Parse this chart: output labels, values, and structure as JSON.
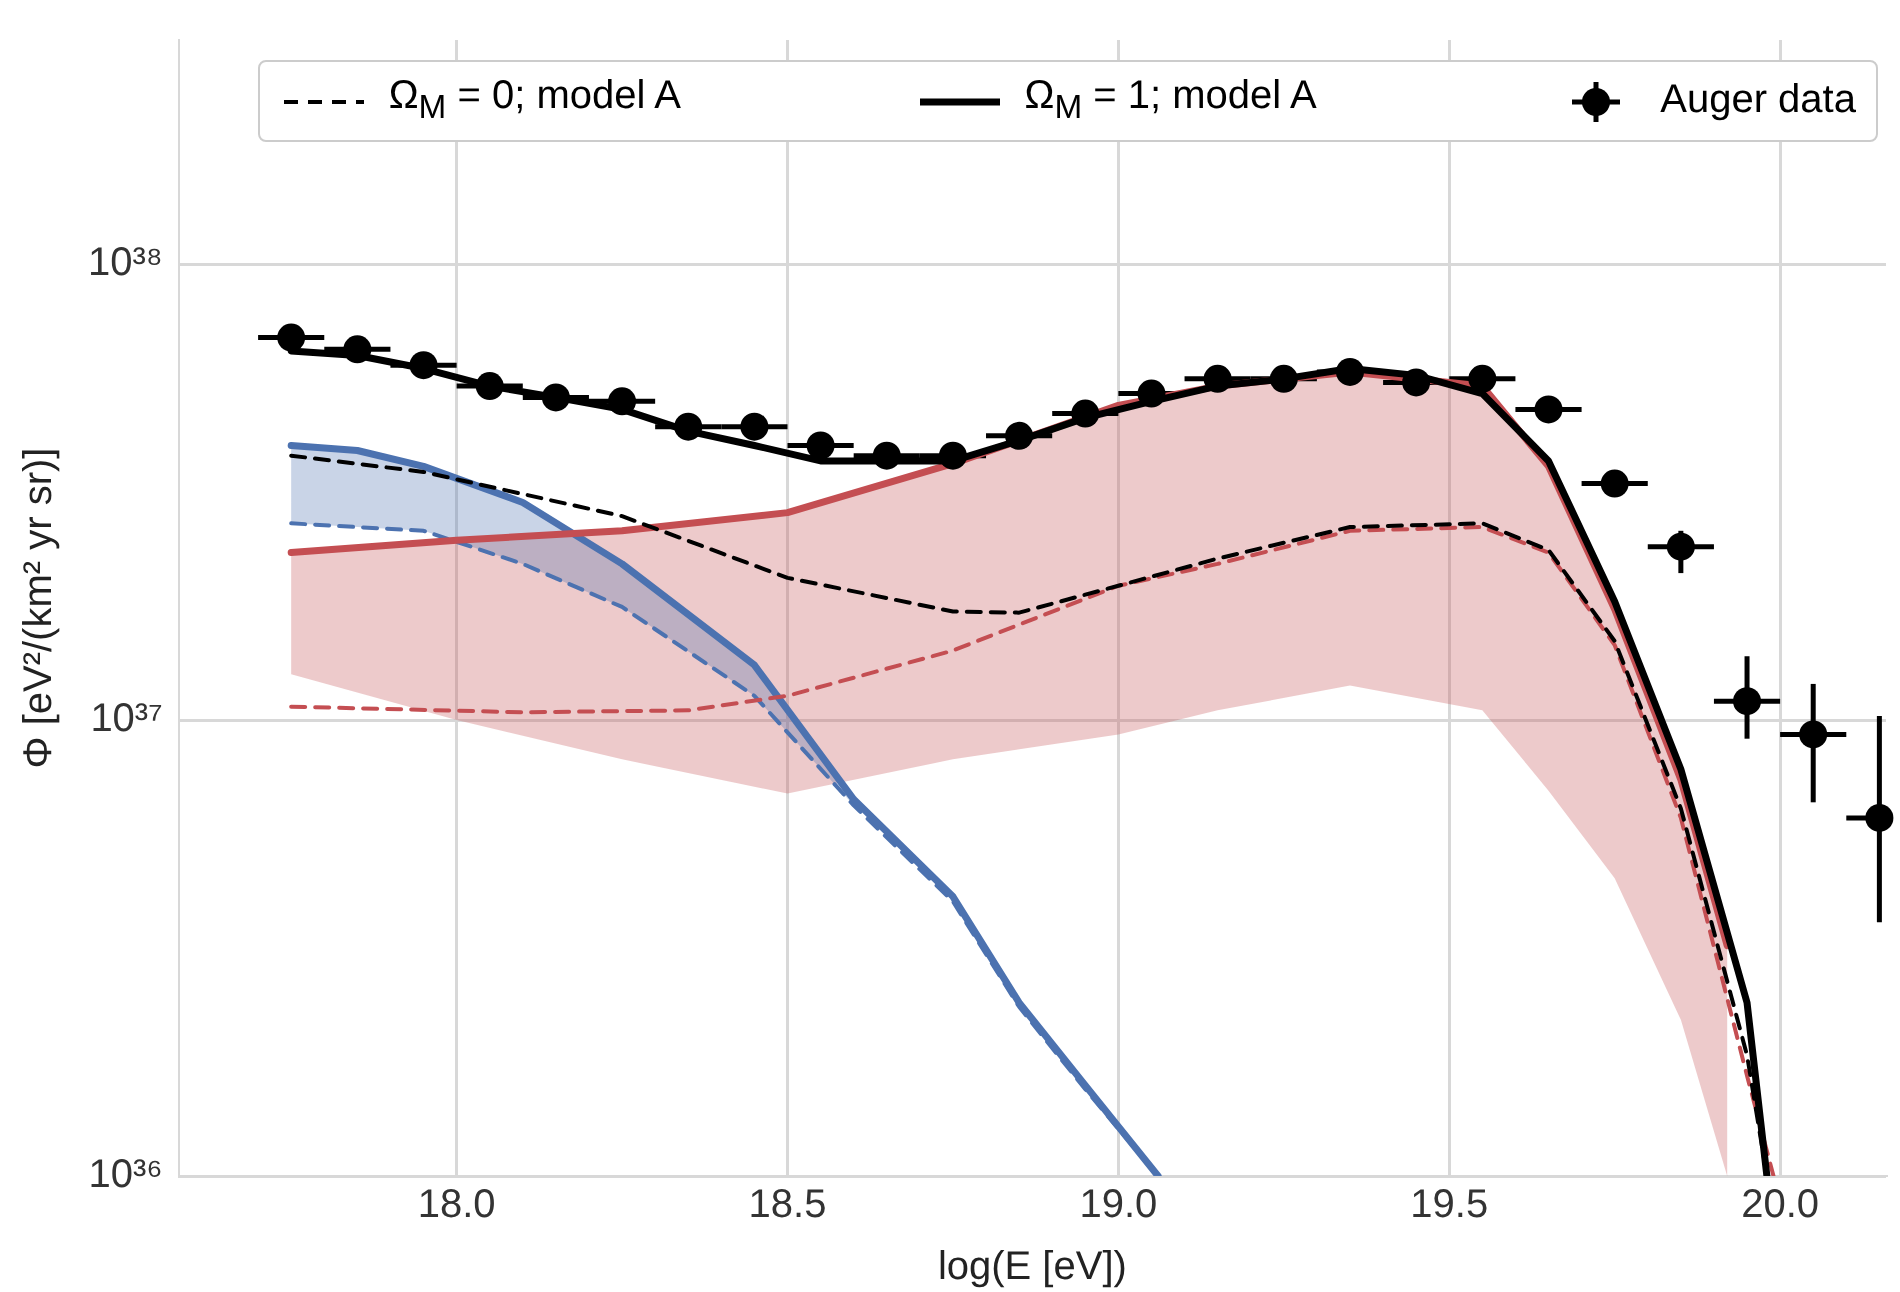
{
  "chart_data": {
    "type": "line",
    "xlabel": "log(E [eV])",
    "ylabel": "Φ [eV²/(km² yr sr)]",
    "log": "y",
    "grid": true,
    "legend": "top right",
    "xlim": [
      17.58,
      20.16
    ],
    "xticks": [
      {
        "value": 18,
        "label": "18.0"
      },
      {
        "value": 18.5,
        "label": "18.5"
      },
      {
        "value": 19,
        "label": "19.0"
      },
      {
        "value": 19.5,
        "label": "19.5"
      },
      {
        "value": 20,
        "label": "20.0"
      }
    ],
    "ylim": [
      1e+36,
      3.1e+38
    ],
    "yticks": [
      {
        "value": 1e+36,
        "label": "10³⁶"
      },
      {
        "value": 1e+37,
        "label": "10³⁷"
      },
      {
        "value": 1e+38,
        "label": "10³⁸"
      }
    ],
    "series": [
      {
        "name": "Ω$_{M}$ = 0; model A",
        "line_style": "dashed",
        "color": "#000000",
        "x": [
          17.75,
          17.95,
          18.25,
          18.5,
          18.75,
          18.85,
          19.0,
          19.15,
          19.35,
          19.55,
          19.65,
          19.75,
          19.85,
          19.95,
          19.98
        ],
        "values": [
          3.8e+37,
          3.5e+37,
          2.8e+37,
          2.05e+37,
          1.73e+37,
          1.72e+37,
          1.97e+37,
          2.26e+37,
          2.65e+37,
          2.7e+37,
          2.36e+37,
          1.49e+37,
          6.4e+36,
          1.84e+36,
          1e+36
        ]
      },
      {
        "name": "Ω$_{M}$ = 1; model A",
        "line_style": "solid",
        "color": "#000000",
        "x": [
          17.75,
          17.85,
          17.95,
          18.05,
          18.15,
          18.25,
          18.35,
          18.45,
          18.55,
          18.65,
          18.75,
          18.85,
          18.95,
          19.05,
          19.15,
          19.25,
          19.35,
          19.45,
          19.55,
          19.65,
          19.75,
          19.85,
          19.95,
          19.98
        ],
        "values": [
          6.45e+37,
          6.3e+37,
          5.9e+37,
          5.4e+37,
          5.1e+37,
          4.8e+37,
          4.3e+37,
          4e+37,
          3.7e+37,
          3.7e+37,
          3.7e+37,
          4.1e+37,
          4.6e+37,
          5e+37,
          5.4e+37,
          5.6e+37,
          5.9e+37,
          5.7e+37,
          5.2e+37,
          3.7e+37,
          1.82e+37,
          7.8e+36,
          2.4e+36,
          1e+36
        ]
      },
      {
        "name": "Auger data",
        "type": "scatter",
        "marker": "circle",
        "color": "#000000",
        "x": [
          17.75,
          17.85,
          17.95,
          18.05,
          18.15,
          18.25,
          18.35,
          18.45,
          18.55,
          18.65,
          18.75,
          18.85,
          18.95,
          19.05,
          19.15,
          19.25,
          19.35,
          19.45,
          19.55,
          19.65,
          19.75,
          19.85,
          19.95,
          20.05,
          20.15
        ],
        "values": [
          6.9e+37,
          6.5e+37,
          6e+37,
          5.4e+37,
          5.1e+37,
          5e+37,
          4.4e+37,
          4.4e+37,
          4e+37,
          3.8e+37,
          3.8e+37,
          4.2e+37,
          4.7e+37,
          5.2e+37,
          5.6e+37,
          5.6e+37,
          5.8e+37,
          5.5e+37,
          5.6e+37,
          4.8e+37,
          3.3e+37,
          2.4e+37,
          1.1e+37,
          9.3e+36,
          6.1e+36
        ],
        "errors": [
          null,
          null,
          null,
          null,
          null,
          null,
          null,
          null,
          null,
          null,
          null,
          null,
          null,
          null,
          null,
          null,
          null,
          null,
          null,
          null,
          null,
          [
            2.1e+37,
            2.6e+37
          ],
          [
            9.1e+36,
            1.38e+37
          ],
          [
            6.6e+36,
            1.2e+37
          ],
          [
            3.6e+36,
            1.02e+37
          ]
        ],
        "xerrors": [
          0.05,
          0.05,
          0.05,
          0.05,
          0.05,
          0.05,
          0.05,
          0.05,
          0.05,
          0.05,
          0.05,
          0.05,
          0.05,
          0.05,
          0.05,
          0.05,
          0.05,
          0.05,
          0.05,
          0.05,
          0.05,
          0.05,
          0.05,
          0.05,
          0.05
        ]
      },
      {
        "line_style": "solid",
        "color": "#c44e52",
        "x": [
          17.75,
          18.0,
          18.25,
          18.5,
          18.75,
          19.0,
          19.15,
          19.35,
          19.55,
          19.65,
          19.75,
          19.85,
          19.92
        ],
        "values": [
          2.33e+37,
          2.48e+37,
          2.6e+37,
          2.85e+37,
          3.65e+37,
          4.9e+37,
          5.4e+37,
          5.8e+37,
          5.4e+37,
          3.6e+37,
          1.75e+37,
          7.4e+36,
          3.2e+36
        ],
        "lower": [
          1.26e+37,
          1e+37,
          8.2e+36,
          6.9e+36,
          8.2e+36,
          9.3e+36,
          1.05e+37,
          1.19e+37,
          1.05e+37,
          7e+36,
          4.5e+36,
          2.2e+36,
          1e+36
        ],
        "upper": [
          2.33e+37,
          2.48e+37,
          2.6e+37,
          2.85e+37,
          3.65e+37,
          4.9e+37,
          5.4e+37,
          5.8e+37,
          5.4e+37,
          3.6e+37,
          1.75e+37,
          7.4e+36,
          3.2e+36
        ]
      },
      {
        "line_style": "dashed",
        "color": "#c44e52",
        "x": [
          17.75,
          18.1,
          18.35,
          18.5,
          18.75,
          19.0,
          19.15,
          19.35,
          19.55,
          19.65,
          19.75,
          19.85,
          19.95,
          19.99
        ],
        "values": [
          1.07e+37,
          1.04e+37,
          1.05e+37,
          1.13e+37,
          1.42e+37,
          1.97e+37,
          2.2e+37,
          2.6e+37,
          2.65e+37,
          2.33e+37,
          1.46e+37,
          6.1e+36,
          1.66e+36,
          1e+36
        ]
      },
      {
        "line_style": "solid",
        "color": "#4c72b0",
        "x": [
          17.75,
          17.85,
          17.95,
          18.1,
          18.25,
          18.45,
          18.6,
          18.75,
          18.85,
          18.95,
          19.06
        ],
        "values": [
          4e+37,
          3.9e+37,
          3.6e+37,
          3e+37,
          2.2e+37,
          1.32e+37,
          6.7e+36,
          4.1e+36,
          2.4e+36,
          1.58e+36,
          1e+36
        ],
        "lower": [
          2.7e+37,
          2.65e+37,
          2.6e+37,
          2.2e+37,
          1.77e+37,
          1.13e+37,
          6.5e+36,
          null,
          null,
          null,
          null
        ],
        "upper": [
          4e+37,
          3.9e+37,
          3.6e+37,
          3e+37,
          2.2e+37,
          1.32e+37,
          6.7e+36,
          null,
          null,
          null,
          null
        ]
      },
      {
        "line_style": "dashed",
        "color": "#4c72b0",
        "x": [
          17.75,
          17.95,
          18.1,
          18.25,
          18.45,
          18.6,
          18.75,
          18.85,
          18.95,
          19.06
        ],
        "values": [
          2.7e+37,
          2.6e+37,
          2.2e+37,
          1.77e+37,
          1.13e+37,
          6.5e+36,
          4e+36,
          2.35e+36,
          1.55e+36,
          1e+36
        ]
      }
    ]
  }
}
